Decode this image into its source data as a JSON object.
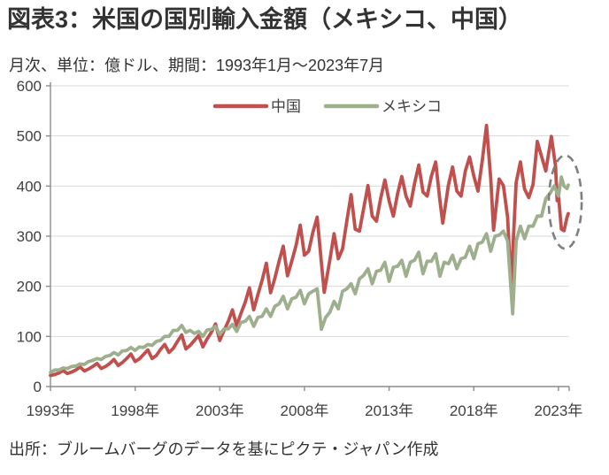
{
  "page": {
    "title": "図表3：米国の国別輸入金額（メキシコ、中国）",
    "subtitle": "月次、単位：億ドル、期間：1993年1月～2023年7月",
    "source": "出所：ブルームバーグのデータを基にピクテ・ジャパン作成"
  },
  "colors": {
    "china": "#C0504D",
    "mexico": "#9DAF8D",
    "grid": "#D9D9D9",
    "axis": "#8C8C8C",
    "tick_label": "#404040",
    "highlight": "#7F7F7F"
  },
  "chart_data": {
    "type": "line",
    "title": "米国の国別輸入金額（メキシコ、中国）",
    "x_unit": "year (monthly series, sampled)",
    "ylabel": "億ドル",
    "ylim": [
      0,
      600
    ],
    "y_ticks": [
      0,
      100,
      200,
      300,
      400,
      500,
      600
    ],
    "x_tick_years": [
      1993,
      1998,
      2003,
      2008,
      2013,
      2018,
      2023
    ],
    "x_tick_labels": [
      "1993年",
      "1998年",
      "2003年",
      "2008年",
      "2013年",
      "2018年",
      "2023年"
    ],
    "x_range": [
      1993.0,
      2023.58
    ],
    "grid": "horizontal",
    "legend_position": "top-center",
    "series": [
      {
        "name": "中国",
        "color": "#C0504D",
        "points": [
          [
            1993.0,
            22
          ],
          [
            1993.25,
            24
          ],
          [
            1993.5,
            27
          ],
          [
            1993.75,
            32
          ],
          [
            1994.0,
            26
          ],
          [
            1994.25,
            29
          ],
          [
            1994.5,
            33
          ],
          [
            1994.75,
            39
          ],
          [
            1995.0,
            31
          ],
          [
            1995.25,
            35
          ],
          [
            1995.5,
            40
          ],
          [
            1995.75,
            46
          ],
          [
            1996.0,
            36
          ],
          [
            1996.25,
            40
          ],
          [
            1996.5,
            46
          ],
          [
            1996.75,
            54
          ],
          [
            1997.0,
            42
          ],
          [
            1997.25,
            48
          ],
          [
            1997.5,
            56
          ],
          [
            1997.75,
            65
          ],
          [
            1998.0,
            50
          ],
          [
            1998.25,
            55
          ],
          [
            1998.5,
            64
          ],
          [
            1998.75,
            73
          ],
          [
            1999.0,
            56
          ],
          [
            1999.25,
            62
          ],
          [
            1999.5,
            74
          ],
          [
            1999.75,
            84
          ],
          [
            2000.0,
            68
          ],
          [
            2000.25,
            76
          ],
          [
            2000.5,
            90
          ],
          [
            2000.75,
            103
          ],
          [
            2001.0,
            75
          ],
          [
            2001.25,
            82
          ],
          [
            2001.5,
            92
          ],
          [
            2001.75,
            102
          ],
          [
            2002.0,
            79
          ],
          [
            2002.25,
            95
          ],
          [
            2002.5,
            108
          ],
          [
            2002.75,
            125
          ],
          [
            2003.0,
            92
          ],
          [
            2003.25,
            112
          ],
          [
            2003.5,
            130
          ],
          [
            2003.75,
            153
          ],
          [
            2004.0,
            121
          ],
          [
            2004.25,
            146
          ],
          [
            2004.5,
            168
          ],
          [
            2004.75,
            197
          ],
          [
            2005.0,
            153
          ],
          [
            2005.25,
            183
          ],
          [
            2005.5,
            212
          ],
          [
            2005.75,
            246
          ],
          [
            2006.0,
            187
          ],
          [
            2006.25,
            216
          ],
          [
            2006.5,
            250
          ],
          [
            2006.75,
            280
          ],
          [
            2007.0,
            221
          ],
          [
            2007.25,
            250
          ],
          [
            2007.5,
            281
          ],
          [
            2007.75,
            322
          ],
          [
            2008.0,
            262
          ],
          [
            2008.25,
            270
          ],
          [
            2008.5,
            308
          ],
          [
            2008.75,
            338
          ],
          [
            2009.0,
            247
          ],
          [
            2009.17,
            188
          ],
          [
            2009.5,
            252
          ],
          [
            2009.75,
            305
          ],
          [
            2010.0,
            255
          ],
          [
            2010.25,
            275
          ],
          [
            2010.5,
            330
          ],
          [
            2010.75,
            383
          ],
          [
            2011.0,
            314
          ],
          [
            2011.25,
            310
          ],
          [
            2011.5,
            356
          ],
          [
            2011.75,
            401
          ],
          [
            2012.0,
            340
          ],
          [
            2012.25,
            330
          ],
          [
            2012.5,
            375
          ],
          [
            2012.75,
            412
          ],
          [
            2013.0,
            370
          ],
          [
            2013.25,
            340
          ],
          [
            2013.5,
            385
          ],
          [
            2013.75,
            419
          ],
          [
            2014.0,
            380
          ],
          [
            2014.25,
            360
          ],
          [
            2014.5,
            405
          ],
          [
            2014.75,
            442
          ],
          [
            2015.0,
            388
          ],
          [
            2015.25,
            380
          ],
          [
            2015.5,
            420
          ],
          [
            2015.75,
            448
          ],
          [
            2016.0,
            371
          ],
          [
            2016.17,
            326
          ],
          [
            2016.5,
            402
          ],
          [
            2016.75,
            438
          ],
          [
            2017.0,
            390
          ],
          [
            2017.25,
            380
          ],
          [
            2017.5,
            430
          ],
          [
            2017.75,
            458
          ],
          [
            2018.0,
            420
          ],
          [
            2018.25,
            390
          ],
          [
            2018.5,
            450
          ],
          [
            2018.75,
            521
          ],
          [
            2019.0,
            415
          ],
          [
            2019.17,
            312
          ],
          [
            2019.5,
            414
          ],
          [
            2019.75,
            401
          ],
          [
            2020.0,
            337
          ],
          [
            2020.2,
            198
          ],
          [
            2020.5,
            407
          ],
          [
            2020.75,
            448
          ],
          [
            2021.0,
            394
          ],
          [
            2021.25,
            377
          ],
          [
            2021.5,
            403
          ],
          [
            2021.75,
            489
          ],
          [
            2022.0,
            459
          ],
          [
            2022.25,
            430
          ],
          [
            2022.58,
            499
          ],
          [
            2022.83,
            440
          ],
          [
            2022.92,
            371
          ],
          [
            2023.0,
            382
          ],
          [
            2023.17,
            314
          ],
          [
            2023.33,
            311
          ],
          [
            2023.5,
            337
          ],
          [
            2023.58,
            345
          ]
        ]
      },
      {
        "name": "メキシコ",
        "color": "#9DAF8D",
        "points": [
          [
            1993.0,
            28
          ],
          [
            1993.25,
            33
          ],
          [
            1993.5,
            33
          ],
          [
            1993.75,
            37
          ],
          [
            1994.0,
            36
          ],
          [
            1994.25,
            40
          ],
          [
            1994.5,
            41
          ],
          [
            1994.75,
            45
          ],
          [
            1995.0,
            44
          ],
          [
            1995.25,
            50
          ],
          [
            1995.5,
            52
          ],
          [
            1995.75,
            56
          ],
          [
            1996.0,
            54
          ],
          [
            1996.25,
            60
          ],
          [
            1996.5,
            62
          ],
          [
            1996.75,
            68
          ],
          [
            1997.0,
            63
          ],
          [
            1997.25,
            71
          ],
          [
            1997.5,
            72
          ],
          [
            1997.75,
            78
          ],
          [
            1998.0,
            72
          ],
          [
            1998.25,
            79
          ],
          [
            1998.5,
            78
          ],
          [
            1998.75,
            84
          ],
          [
            1999.0,
            82
          ],
          [
            1999.25,
            90
          ],
          [
            1999.5,
            92
          ],
          [
            1999.75,
            100
          ],
          [
            2000.0,
            100
          ],
          [
            2000.25,
            112
          ],
          [
            2000.5,
            112
          ],
          [
            2000.75,
            122
          ],
          [
            2001.0,
            108
          ],
          [
            2001.25,
            112
          ],
          [
            2001.5,
            106
          ],
          [
            2001.75,
            110
          ],
          [
            2002.0,
            100
          ],
          [
            2002.25,
            113
          ],
          [
            2002.5,
            114
          ],
          [
            2002.75,
            120
          ],
          [
            2003.0,
            104
          ],
          [
            2003.25,
            115
          ],
          [
            2003.5,
            115
          ],
          [
            2003.75,
            124
          ],
          [
            2004.0,
            110
          ],
          [
            2004.25,
            128
          ],
          [
            2004.5,
            130
          ],
          [
            2004.75,
            140
          ],
          [
            2005.0,
            120
          ],
          [
            2005.25,
            138
          ],
          [
            2005.5,
            140
          ],
          [
            2005.75,
            155
          ],
          [
            2006.0,
            140
          ],
          [
            2006.25,
            160
          ],
          [
            2006.5,
            165
          ],
          [
            2006.75,
            180
          ],
          [
            2007.0,
            155
          ],
          [
            2007.25,
            175
          ],
          [
            2007.5,
            178
          ],
          [
            2007.75,
            192
          ],
          [
            2008.0,
            165
          ],
          [
            2008.25,
            185
          ],
          [
            2008.5,
            190
          ],
          [
            2008.75,
            195
          ],
          [
            2009.0,
            114
          ],
          [
            2009.25,
            138
          ],
          [
            2009.5,
            148
          ],
          [
            2009.75,
            170
          ],
          [
            2010.0,
            155
          ],
          [
            2010.25,
            190
          ],
          [
            2010.5,
            195
          ],
          [
            2010.75,
            205
          ],
          [
            2011.0,
            185
          ],
          [
            2011.25,
            215
          ],
          [
            2011.5,
            222
          ],
          [
            2011.75,
            235
          ],
          [
            2012.0,
            205
          ],
          [
            2012.25,
            230
          ],
          [
            2012.5,
            232
          ],
          [
            2012.75,
            248
          ],
          [
            2013.0,
            210
          ],
          [
            2013.25,
            238
          ],
          [
            2013.5,
            240
          ],
          [
            2013.75,
            252
          ],
          [
            2014.0,
            220
          ],
          [
            2014.25,
            248
          ],
          [
            2014.5,
            252
          ],
          [
            2014.75,
            268
          ],
          [
            2015.0,
            225
          ],
          [
            2015.25,
            250
          ],
          [
            2015.5,
            250
          ],
          [
            2015.75,
            265
          ],
          [
            2016.0,
            220
          ],
          [
            2016.25,
            248
          ],
          [
            2016.5,
            245
          ],
          [
            2016.75,
            262
          ],
          [
            2017.0,
            235
          ],
          [
            2017.25,
            255
          ],
          [
            2017.5,
            258
          ],
          [
            2017.75,
            280
          ],
          [
            2018.0,
            255
          ],
          [
            2018.25,
            285
          ],
          [
            2018.5,
            288
          ],
          [
            2018.75,
            305
          ],
          [
            2019.0,
            270
          ],
          [
            2019.25,
            300
          ],
          [
            2019.5,
            302
          ],
          [
            2019.75,
            310
          ],
          [
            2020.0,
            290
          ],
          [
            2020.3,
            145
          ],
          [
            2020.5,
            290
          ],
          [
            2020.75,
            320
          ],
          [
            2021.0,
            295
          ],
          [
            2021.25,
            320
          ],
          [
            2021.5,
            320
          ],
          [
            2021.75,
            340
          ],
          [
            2022.0,
            340
          ],
          [
            2022.25,
            375
          ],
          [
            2022.5,
            385
          ],
          [
            2022.75,
            400
          ],
          [
            2023.0,
            380
          ],
          [
            2023.17,
            418
          ],
          [
            2023.33,
            400
          ],
          [
            2023.5,
            395
          ],
          [
            2023.58,
            402
          ]
        ]
      }
    ],
    "highlight_ellipse": {
      "t_center": 2023.4,
      "v_center": 368,
      "t_radius": 0.97,
      "v_radius": 93,
      "style": "dashed"
    }
  }
}
